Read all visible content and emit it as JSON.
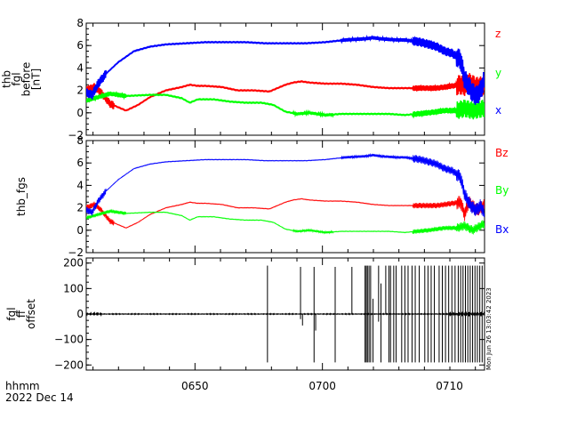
{
  "chart_data": [
    {
      "type": "line",
      "ylabel": [
        "thb",
        "fgl",
        "before",
        "[nT]"
      ],
      "ylim": [
        -2,
        8
      ],
      "yticks": [
        -2,
        0,
        2,
        4,
        6,
        8
      ],
      "series": [
        {
          "name": "z",
          "color": "#ff0000",
          "x": [
            0.0,
            0.02,
            0.035,
            0.06,
            0.1,
            0.13,
            0.16,
            0.2,
            0.24,
            0.26,
            0.28,
            0.3,
            0.34,
            0.38,
            0.42,
            0.46,
            0.5,
            0.52,
            0.54,
            0.56,
            0.6,
            0.64,
            0.68,
            0.72,
            0.76,
            0.8,
            0.84,
            0.88,
            0.9,
            0.92,
            0.94,
            0.95,
            0.96,
            0.98,
            1.0
          ],
          "y": [
            2.0,
            2.3,
            1.9,
            0.8,
            0.2,
            0.7,
            1.4,
            2.0,
            2.3,
            2.5,
            2.4,
            2.4,
            2.3,
            2.0,
            2.0,
            1.9,
            2.5,
            2.7,
            2.8,
            2.7,
            2.6,
            2.6,
            2.5,
            2.3,
            2.2,
            2.2,
            2.2,
            2.2,
            2.3,
            2.4,
            2.5,
            2.4,
            2.7,
            2.3,
            2.4
          ],
          "osc": [
            [
              0.0,
              0.07,
              0.35
            ],
            [
              0.82,
              0.93,
              0.25
            ],
            [
              0.93,
              1.0,
              0.9
            ]
          ]
        },
        {
          "name": "y",
          "color": "#00ff00",
          "x": [
            0.0,
            0.04,
            0.06,
            0.1,
            0.16,
            0.2,
            0.24,
            0.26,
            0.28,
            0.32,
            0.36,
            0.4,
            0.44,
            0.47,
            0.5,
            0.53,
            0.56,
            0.6,
            0.64,
            0.7,
            0.76,
            0.8,
            0.86,
            0.9,
            0.93,
            0.95,
            0.97,
            1.0
          ],
          "y": [
            1.1,
            1.5,
            1.7,
            1.5,
            1.6,
            1.6,
            1.3,
            0.9,
            1.2,
            1.2,
            1.0,
            0.9,
            0.9,
            0.7,
            0.1,
            -0.1,
            0.0,
            -0.2,
            -0.1,
            -0.1,
            -0.1,
            -0.2,
            0.0,
            0.2,
            0.2,
            0.4,
            0.2,
            0.4
          ],
          "osc": [
            [
              0.0,
              0.1,
              0.2
            ],
            [
              0.52,
              0.62,
              0.12
            ],
            [
              0.82,
              0.93,
              0.25
            ],
            [
              0.93,
              1.0,
              0.8
            ]
          ]
        },
        {
          "name": "x",
          "color": "#0000ff",
          "x": [
            0.0,
            0.015,
            0.03,
            0.05,
            0.08,
            0.1,
            0.12,
            0.16,
            0.2,
            0.25,
            0.3,
            0.35,
            0.4,
            0.45,
            0.5,
            0.55,
            0.6,
            0.65,
            0.7,
            0.72,
            0.74,
            0.78,
            0.8,
            0.84,
            0.86,
            0.88,
            0.9,
            0.92,
            0.94,
            0.95,
            0.96,
            0.97,
            0.98,
            0.99,
            1.0
          ],
          "y": [
            1.8,
            1.6,
            2.6,
            3.5,
            4.5,
            5.0,
            5.5,
            5.9,
            6.1,
            6.2,
            6.3,
            6.3,
            6.3,
            6.2,
            6.2,
            6.2,
            6.3,
            6.5,
            6.6,
            6.7,
            6.6,
            6.5,
            6.5,
            6.3,
            6.1,
            5.9,
            5.5,
            5.3,
            4.7,
            3.0,
            2.4,
            1.8,
            1.5,
            2.0,
            3.0
          ],
          "osc": [
            [
              0.0,
              0.05,
              0.4
            ],
            [
              0.64,
              0.82,
              0.15
            ],
            [
              0.82,
              0.93,
              0.4
            ],
            [
              0.93,
              1.0,
              0.9
            ]
          ]
        }
      ]
    },
    {
      "type": "line",
      "ylabel": "thb_fgs",
      "ylim": [
        -2,
        8
      ],
      "yticks": [
        -2,
        0,
        2,
        4,
        6,
        8
      ],
      "series": [
        {
          "name": "Bz",
          "color": "#ff0000",
          "x": [
            0.0,
            0.02,
            0.035,
            0.06,
            0.1,
            0.13,
            0.16,
            0.2,
            0.24,
            0.26,
            0.28,
            0.3,
            0.34,
            0.38,
            0.42,
            0.46,
            0.5,
            0.52,
            0.54,
            0.56,
            0.6,
            0.64,
            0.68,
            0.72,
            0.76,
            0.8,
            0.84,
            0.88,
            0.9,
            0.92,
            0.94,
            0.95,
            0.96,
            0.98,
            1.0
          ],
          "y": [
            2.0,
            2.3,
            1.9,
            0.8,
            0.2,
            0.7,
            1.4,
            2.0,
            2.3,
            2.5,
            2.4,
            2.4,
            2.3,
            2.0,
            2.0,
            1.9,
            2.5,
            2.7,
            2.8,
            2.7,
            2.6,
            2.6,
            2.5,
            2.3,
            2.2,
            2.2,
            2.2,
            2.2,
            2.3,
            2.4,
            2.5,
            1.4,
            2.5,
            1.8,
            2.2
          ],
          "osc": [
            [
              0.0,
              0.07,
              0.25
            ],
            [
              0.82,
              0.93,
              0.25
            ],
            [
              0.93,
              1.0,
              0.6
            ]
          ]
        },
        {
          "name": "By",
          "color": "#00ff00",
          "x": [
            0.0,
            0.04,
            0.06,
            0.1,
            0.16,
            0.2,
            0.24,
            0.26,
            0.28,
            0.32,
            0.36,
            0.4,
            0.44,
            0.47,
            0.5,
            0.53,
            0.56,
            0.6,
            0.64,
            0.7,
            0.76,
            0.8,
            0.86,
            0.9,
            0.93,
            0.95,
            0.97,
            1.0
          ],
          "y": [
            1.1,
            1.5,
            1.7,
            1.5,
            1.6,
            1.6,
            1.3,
            0.9,
            1.2,
            1.2,
            1.0,
            0.9,
            0.9,
            0.7,
            0.1,
            -0.1,
            0.0,
            -0.2,
            -0.1,
            -0.1,
            -0.1,
            -0.2,
            0.0,
            0.2,
            0.2,
            0.4,
            0.0,
            0.6
          ],
          "osc": [
            [
              0.0,
              0.1,
              0.15
            ],
            [
              0.52,
              0.62,
              0.1
            ],
            [
              0.82,
              0.93,
              0.2
            ],
            [
              0.93,
              1.0,
              0.4
            ]
          ]
        },
        {
          "name": "Bx",
          "color": "#0000ff",
          "x": [
            0.0,
            0.015,
            0.03,
            0.05,
            0.08,
            0.1,
            0.12,
            0.16,
            0.2,
            0.25,
            0.3,
            0.35,
            0.4,
            0.45,
            0.5,
            0.55,
            0.6,
            0.65,
            0.7,
            0.72,
            0.74,
            0.78,
            0.8,
            0.84,
            0.86,
            0.88,
            0.9,
            0.92,
            0.94,
            0.95,
            0.96,
            0.97,
            0.98,
            0.99,
            1.0
          ],
          "y": [
            1.8,
            1.6,
            2.6,
            3.5,
            4.5,
            5.0,
            5.5,
            5.9,
            6.1,
            6.2,
            6.3,
            6.3,
            6.3,
            6.2,
            6.2,
            6.2,
            6.3,
            6.5,
            6.6,
            6.7,
            6.6,
            6.5,
            6.5,
            6.3,
            6.1,
            5.9,
            5.5,
            5.3,
            4.7,
            3.2,
            2.5,
            2.0,
            1.8,
            2.2,
            1.5
          ],
          "osc": [
            [
              0.0,
              0.05,
              0.3
            ],
            [
              0.64,
              0.82,
              0.12
            ],
            [
              0.82,
              0.93,
              0.35
            ],
            [
              0.93,
              1.0,
              0.6
            ]
          ]
        }
      ]
    },
    {
      "type": "line",
      "ylabel": [
        "fgl",
        "ff",
        "offset"
      ],
      "ylim": [
        -220,
        220
      ],
      "yticks": [
        -200,
        -100,
        0,
        100,
        200
      ],
      "series": [
        {
          "name": "",
          "color": "#000000",
          "baseline": 0,
          "noise": [
            [
              0.0,
              0.04,
              6
            ],
            [
              0.04,
              0.91,
              2
            ],
            [
              0.91,
              1.0,
              10
            ]
          ],
          "spikes": [
            {
              "x": 0.455,
              "y0": 190,
              "y1": -190
            },
            {
              "x": 0.538,
              "y0": 185,
              "y1": -20
            },
            {
              "x": 0.543,
              "y0": 0,
              "y1": -45
            },
            {
              "x": 0.572,
              "y0": 185,
              "y1": -190
            },
            {
              "x": 0.576,
              "y0": 0,
              "y1": -65
            },
            {
              "x": 0.625,
              "y0": 185,
              "y1": -190
            },
            {
              "x": 0.667,
              "y0": 185,
              "y1": 0
            },
            {
              "x": 0.7,
              "y0": 190,
              "y1": -190
            },
            {
              "x": 0.703,
              "y0": 190,
              "y1": -190
            },
            {
              "x": 0.706,
              "y0": 190,
              "y1": -190
            },
            {
              "x": 0.71,
              "y0": 190,
              "y1": -190
            },
            {
              "x": 0.714,
              "y0": 190,
              "y1": -190
            },
            {
              "x": 0.72,
              "y0": 60,
              "y1": -190
            },
            {
              "x": 0.734,
              "y0": 190,
              "y1": -30
            },
            {
              "x": 0.74,
              "y0": 120,
              "y1": -190
            },
            {
              "x": 0.752,
              "y0": 190,
              "y1": 0
            },
            {
              "x": 0.76,
              "y0": 190,
              "y1": -190
            },
            {
              "x": 0.764,
              "y0": 190,
              "y1": -190
            },
            {
              "x": 0.772,
              "y0": 190,
              "y1": -190
            },
            {
              "x": 0.778,
              "y0": 190,
              "y1": -190
            },
            {
              "x": 0.792,
              "y0": 190,
              "y1": -190
            },
            {
              "x": 0.8,
              "y0": 190,
              "y1": -190
            },
            {
              "x": 0.808,
              "y0": 190,
              "y1": -190
            },
            {
              "x": 0.818,
              "y0": 190,
              "y1": -190
            },
            {
              "x": 0.826,
              "y0": 190,
              "y1": -190
            },
            {
              "x": 0.836,
              "y0": 190,
              "y1": -190
            },
            {
              "x": 0.85,
              "y0": 190,
              "y1": -190
            },
            {
              "x": 0.858,
              "y0": 190,
              "y1": -190
            },
            {
              "x": 0.866,
              "y0": 190,
              "y1": -190
            },
            {
              "x": 0.874,
              "y0": 190,
              "y1": -190
            },
            {
              "x": 0.886,
              "y0": 190,
              "y1": -190
            },
            {
              "x": 0.894,
              "y0": 190,
              "y1": -190
            },
            {
              "x": 0.902,
              "y0": 190,
              "y1": -190
            },
            {
              "x": 0.91,
              "y0": 190,
              "y1": -190
            },
            {
              "x": 0.918,
              "y0": 190,
              "y1": -190
            },
            {
              "x": 0.926,
              "y0": 190,
              "y1": -190
            },
            {
              "x": 0.934,
              "y0": 190,
              "y1": -190
            },
            {
              "x": 0.94,
              "y0": 190,
              "y1": -190
            },
            {
              "x": 0.946,
              "y0": 190,
              "y1": -190
            },
            {
              "x": 0.952,
              "y0": 190,
              "y1": -190
            },
            {
              "x": 0.958,
              "y0": 190,
              "y1": -190
            },
            {
              "x": 0.964,
              "y0": 190,
              "y1": -190
            },
            {
              "x": 0.97,
              "y0": 190,
              "y1": -190
            },
            {
              "x": 0.976,
              "y0": 190,
              "y1": -190
            },
            {
              "x": 0.982,
              "y0": 190,
              "y1": -190
            },
            {
              "x": 0.988,
              "y0": 190,
              "y1": -190
            },
            {
              "x": 0.994,
              "y0": 190,
              "y1": -190
            }
          ]
        }
      ]
    }
  ],
  "x_axis": {
    "tick_labels": [
      "0650",
      "0700",
      "0710"
    ],
    "time_label": "hhmm",
    "date_label": "2022 Dec 14"
  },
  "timestamp": "Mon Jun 26 13:03:42 2023",
  "colors": {
    "axis": "#000000",
    "background": "#ffffff"
  }
}
